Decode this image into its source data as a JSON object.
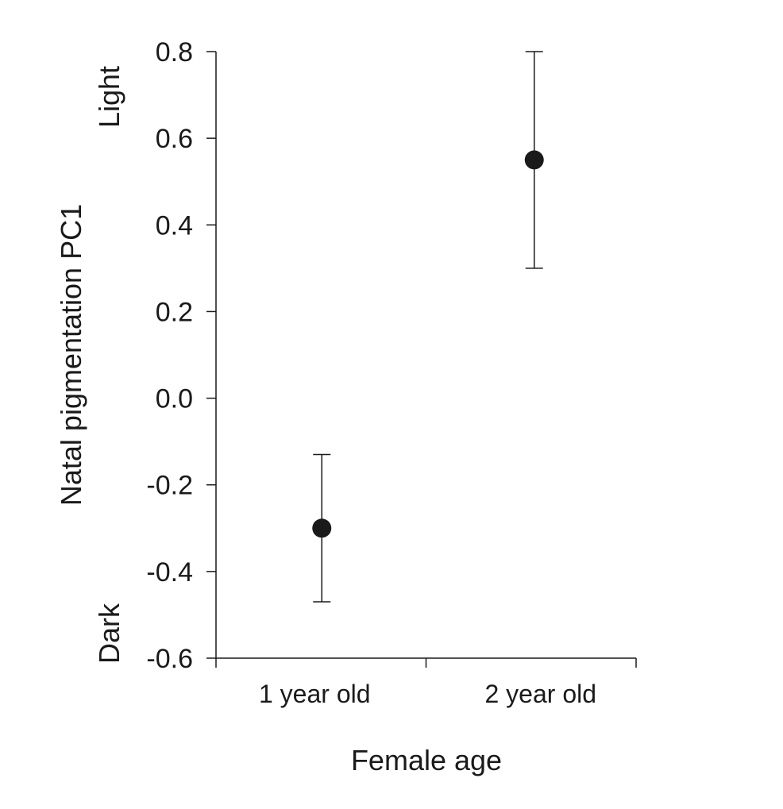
{
  "chart_data": {
    "type": "scatter",
    "title": "",
    "xlabel": "Female age",
    "ylabel": "Natal pigmentation PC1",
    "y_annotations": {
      "top": "Light",
      "bottom": "Dark"
    },
    "categories": [
      "1 year old",
      "2 year old"
    ],
    "values": [
      -0.3,
      0.55
    ],
    "error_bars": [
      {
        "low": -0.47,
        "high": -0.13
      },
      {
        "low": 0.3,
        "high": 0.8
      }
    ],
    "ylim": [
      -0.6,
      0.8
    ],
    "yticks": [
      0.8,
      0.6,
      0.4,
      0.2,
      0.0,
      -0.2,
      -0.4,
      -0.6
    ],
    "ytick_labels": [
      "0.8",
      "0.6",
      "0.4",
      "0.2",
      "0.0",
      "-0.2",
      "-0.4",
      "-0.6"
    ],
    "grid": false,
    "legend": "none",
    "colors": {
      "marker": "#1a1a1a",
      "axis": "#1a1a1a"
    }
  }
}
